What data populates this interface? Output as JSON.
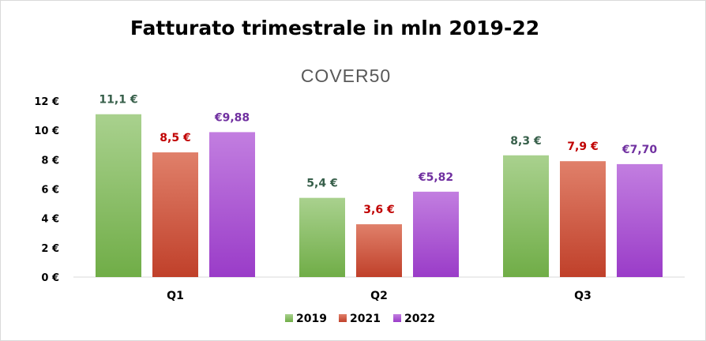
{
  "chart_data": {
    "type": "bar",
    "title": "Fatturato trimestrale in mln 2019-22",
    "brand": "COVER50",
    "categories": [
      "Q1",
      "Q2",
      "Q3"
    ],
    "ylim": [
      0,
      12
    ],
    "yticks": [
      0,
      2,
      4,
      6,
      8,
      10,
      12
    ],
    "ytick_labels": [
      "0 €",
      "2 €",
      "4 €",
      "6 €",
      "8 €",
      "10 €",
      "12 €"
    ],
    "grid": false,
    "legend_position": "bottom",
    "series": [
      {
        "name": "2019",
        "values": [
          11.1,
          5.4,
          8.3
        ],
        "labels": [
          "11,1 €",
          "5,4 €",
          "8,3 €"
        ],
        "color_top": "#a9d18e",
        "color_bottom": "#70ad47",
        "label_color": "#375f4a"
      },
      {
        "name": "2021",
        "values": [
          8.5,
          3.6,
          7.9
        ],
        "labels": [
          "8,5 €",
          "3,6 €",
          "7,9 €"
        ],
        "color_top": "#e0806a",
        "color_bottom": "#c0402a",
        "label_color": "#c00000"
      },
      {
        "name": "2022",
        "values": [
          9.88,
          5.82,
          7.7
        ],
        "labels": [
          "€9,88",
          "€5,82",
          "€7,70"
        ],
        "color_top": "#c27ee0",
        "color_bottom": "#9a3cc8",
        "label_color": "#7030a0"
      }
    ]
  }
}
